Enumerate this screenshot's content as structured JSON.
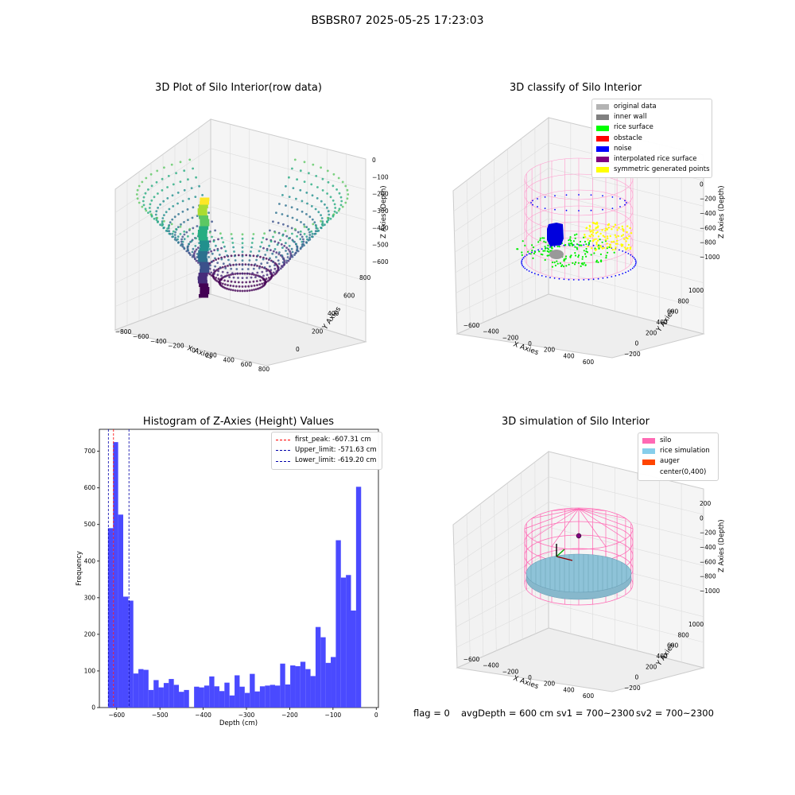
{
  "figure": {
    "title": "BSBSR07 2025-05-25 17:23:03"
  },
  "chart_data": [
    {
      "type": "scatter3d",
      "title": "3D Plot of Silo Interior(row data)",
      "xlabel": "X Axies",
      "ylabel": "Y Axies",
      "zlabel": "Z Axies (Depth)",
      "x_ticks": [
        "−800",
        "−600",
        "−400",
        "−200",
        "0",
        "200",
        "400",
        "600",
        "800"
      ],
      "y_ticks": [
        "0",
        "200",
        "400",
        "600",
        "800"
      ],
      "z_ticks": [
        "0",
        "−100",
        "−200",
        "−300",
        "−400",
        "−500",
        "−600"
      ],
      "xlim": [
        -800,
        800
      ],
      "ylim": [
        0,
        800
      ],
      "zlim": [
        -650,
        0
      ],
      "colormap": "viridis",
      "grid": true
    },
    {
      "type": "scatter3d",
      "title": "3D classify of Silo Interior",
      "xlabel": "X Axies",
      "ylabel": "Y Axies",
      "zlabel": "Z Axies (Depth)",
      "x_ticks": [
        "−600",
        "−400",
        "−200",
        "0",
        "200",
        "400",
        "600"
      ],
      "y_ticks": [
        "−200",
        "0",
        "200",
        "400",
        "600",
        "800",
        "1000"
      ],
      "z_ticks": [
        "200",
        "0",
        "−200",
        "−400",
        "−600",
        "−800",
        "−1000"
      ],
      "legend_position": "top-right",
      "legend": [
        {
          "label": "original data",
          "color": "#b3b3b3"
        },
        {
          "label": "inner wall",
          "color": "#808080"
        },
        {
          "label": "rice surface",
          "color": "#00ff00"
        },
        {
          "label": "obstacle",
          "color": "#ff0000"
        },
        {
          "label": "noise",
          "color": "#0000ff"
        },
        {
          "label": "interpolated rice surface",
          "color": "#800080"
        },
        {
          "label": "symmetric generated points",
          "color": "#ffff00"
        }
      ],
      "grid": true
    },
    {
      "type": "bar",
      "title": "Histogram of Z-Axies (Height) Values",
      "xlabel": "Depth (cm)",
      "ylabel": "Frequency",
      "xlim": [
        -640,
        5
      ],
      "ylim": [
        0,
        760
      ],
      "x_ticks": [
        -600,
        -500,
        -400,
        -300,
        -200,
        -100,
        0
      ],
      "y_ticks": [
        0,
        100,
        200,
        300,
        400,
        500,
        600,
        700
      ],
      "bar_color": "#4a4aff",
      "bin_start": -620,
      "bin_width": 11.7,
      "values": [
        490,
        725,
        527,
        303,
        292,
        93,
        105,
        103,
        48,
        75,
        55,
        67,
        78,
        62,
        43,
        48,
        0,
        57,
        55,
        60,
        85,
        58,
        45,
        68,
        33,
        88,
        57,
        40,
        92,
        44,
        58,
        60,
        62,
        60,
        120,
        63,
        115,
        113,
        125,
        105,
        86,
        220,
        192,
        122,
        138,
        457,
        355,
        362,
        265,
        603
      ],
      "legend_position": "top-right",
      "vlines": [
        {
          "label": "first_peak: -607.31 cm",
          "value": -607.31,
          "color": "#ff0000"
        },
        {
          "label": "Upper_limit: -571.63 cm",
          "value": -571.63,
          "color": "#0000aa"
        },
        {
          "label": "Lower_limit: -619.20 cm",
          "value": -619.2,
          "color": "#0000aa"
        }
      ],
      "grid": false
    },
    {
      "type": "scatter3d",
      "title": "3D simulation of Silo Interior",
      "xlabel": "X Axies",
      "ylabel": "Y Axies",
      "zlabel": "Z Axies (Depth)",
      "x_ticks": [
        "−600",
        "−400",
        "−200",
        "0",
        "200",
        "400",
        "600"
      ],
      "y_ticks": [
        "−200",
        "0",
        "200",
        "400",
        "600",
        "800",
        "1000"
      ],
      "z_ticks": [
        "200",
        "0",
        "−200",
        "−400",
        "−600",
        "−800",
        "−1000"
      ],
      "legend_position": "top-right",
      "legend": [
        {
          "label": "silo",
          "color": "#ff69b4"
        },
        {
          "label": "rice simulation",
          "color": "#87ceeb"
        },
        {
          "label": "auger",
          "color": "#ff4500"
        },
        {
          "label": "center(0,400)",
          "color": "none"
        }
      ],
      "grid": true
    }
  ],
  "info": {
    "flag": "flag = 0",
    "avg_depth": "avgDepth = 600 cm",
    "sv1": "sv1 = 700~2300",
    "sv2": "sv2 = 700~2300"
  }
}
